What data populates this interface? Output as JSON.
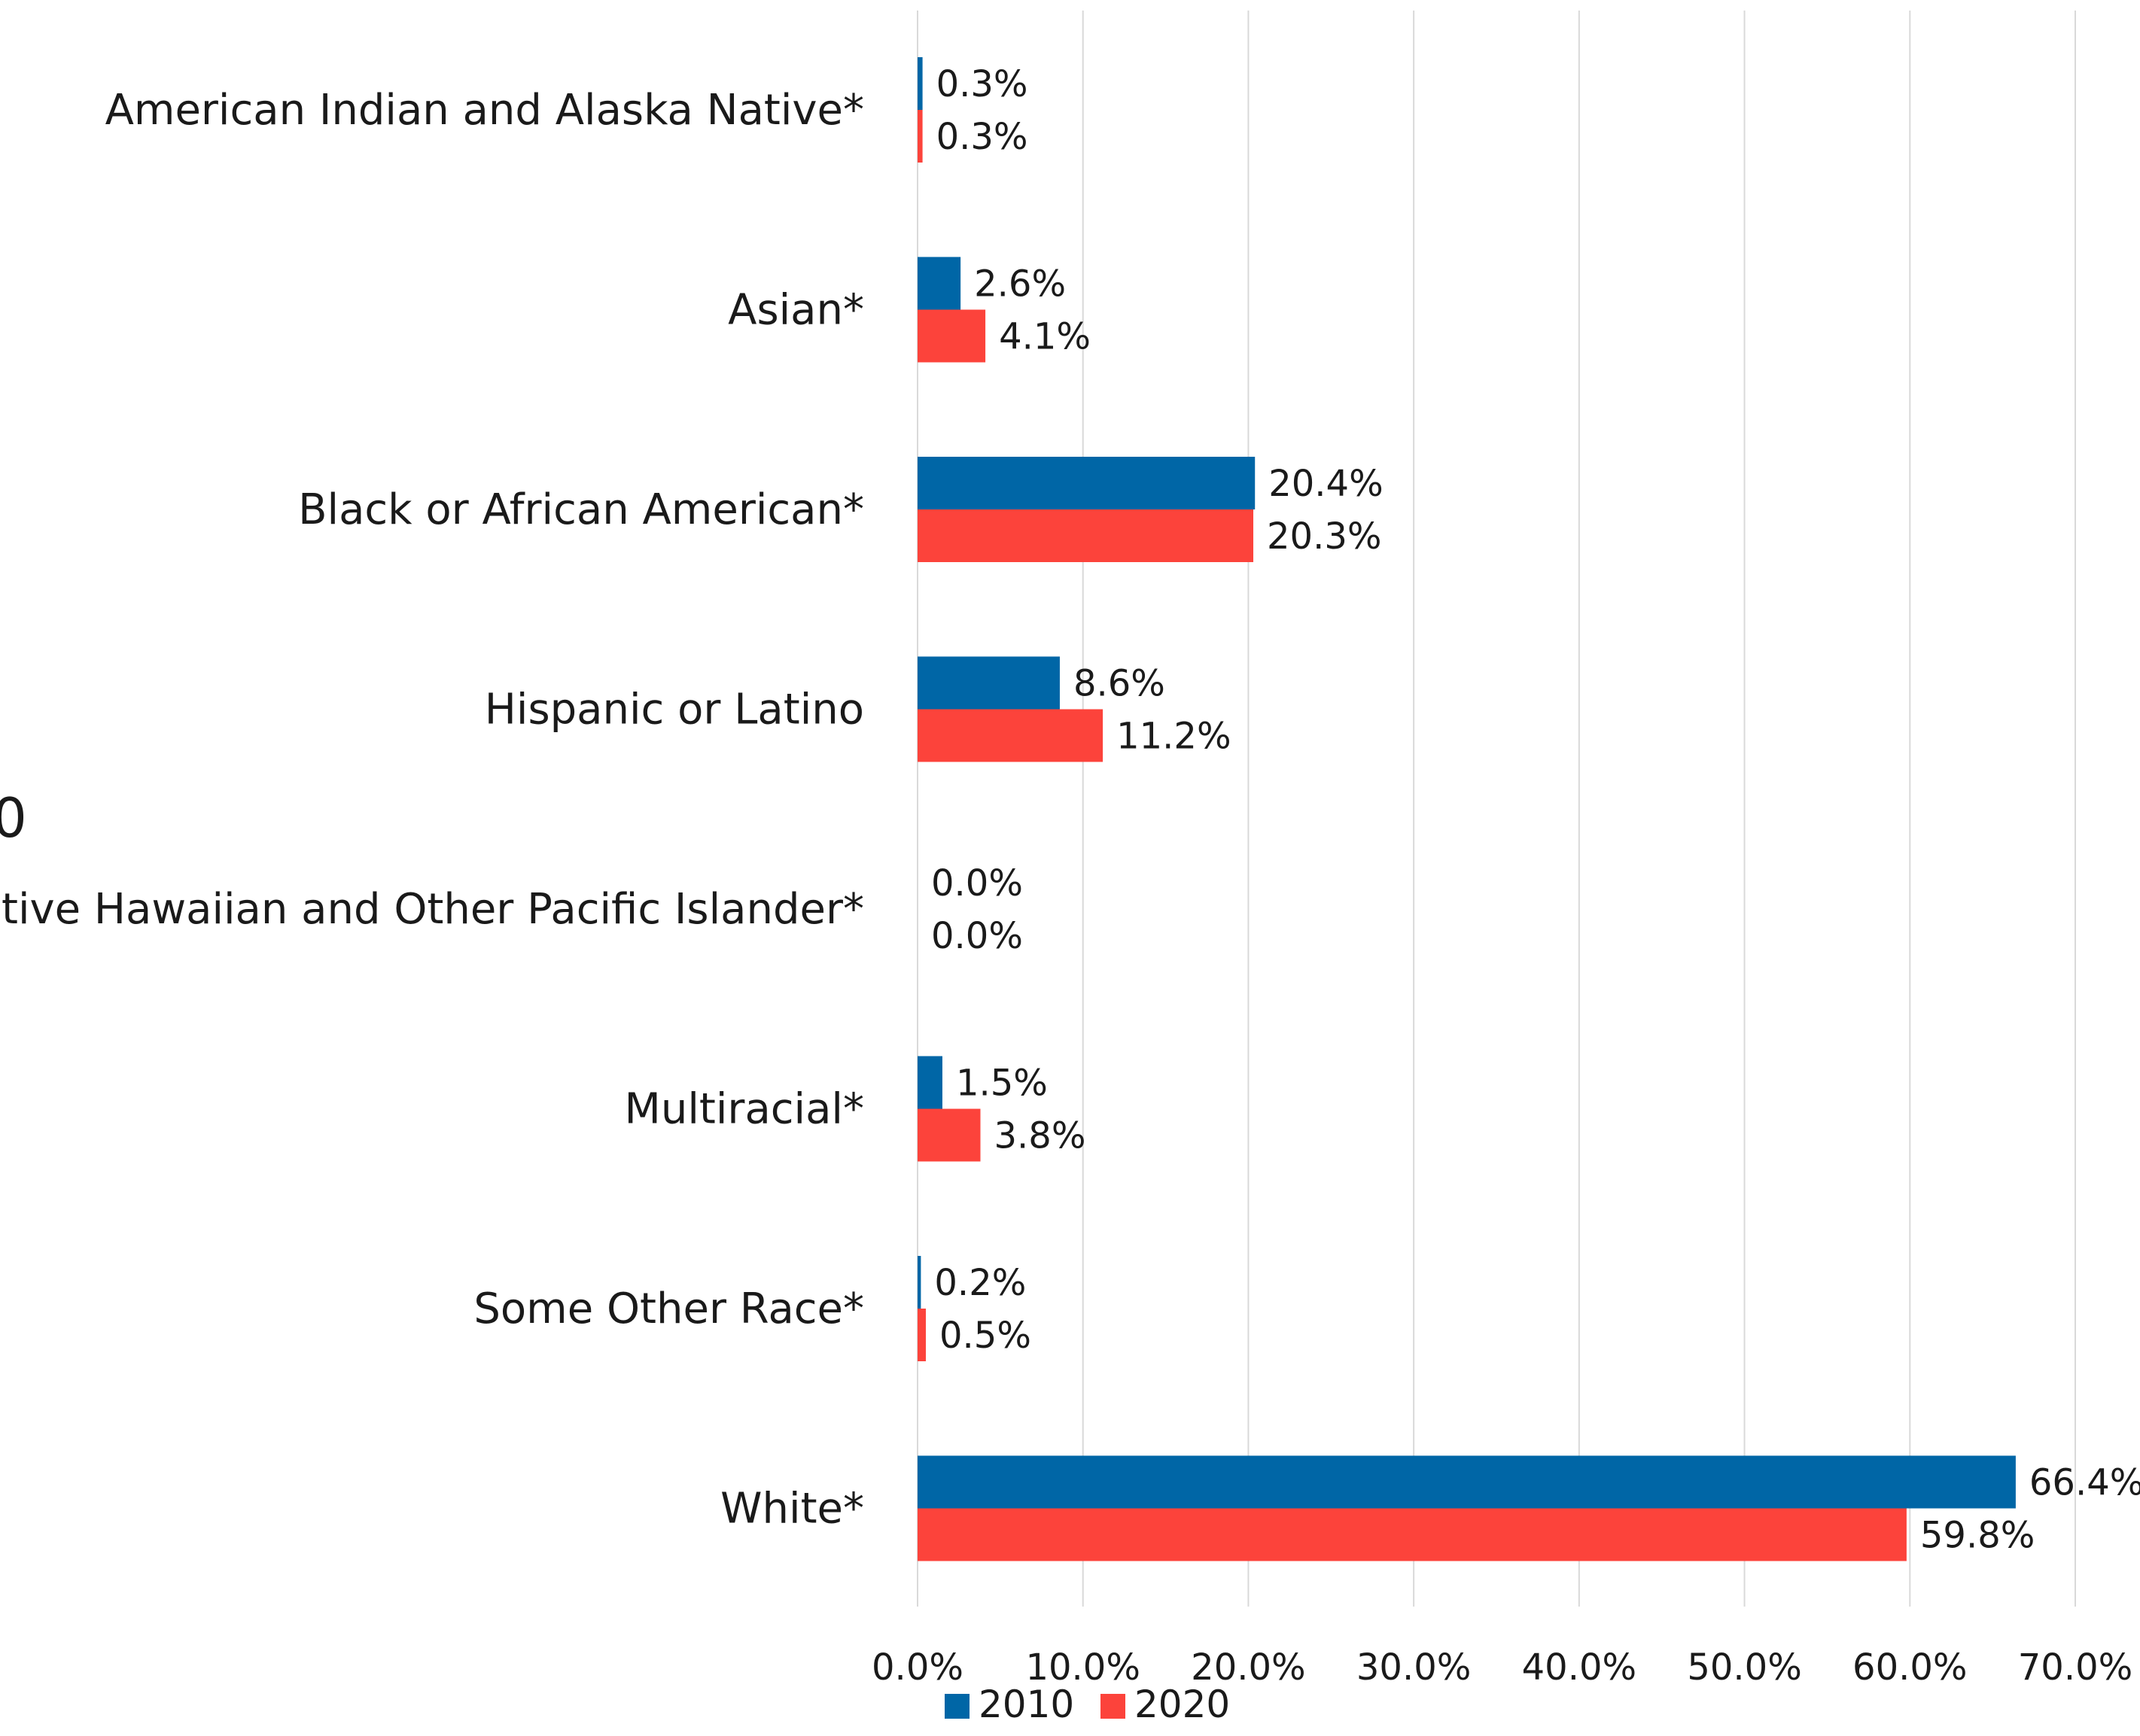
{
  "chart_data": {
    "type": "bar",
    "orientation": "horizontal",
    "categories": [
      "American Indian and Alaska Native*",
      "Asian*",
      "Black or African American*",
      "Hispanic or Latino",
      "Native Hawaiian and Other Pacific Islander*",
      "Multiracial*",
      "Some Other Race*",
      "White*"
    ],
    "series": [
      {
        "name": "2010",
        "color": "#0066a6",
        "values": [
          0.3,
          2.6,
          20.4,
          8.6,
          0.0,
          1.5,
          0.2,
          66.4
        ],
        "labels": [
          "0.3%",
          "2.6%",
          "20.4%",
          "8.6%",
          "0.0%",
          "1.5%",
          "0.2%",
          "66.4%"
        ]
      },
      {
        "name": "2020",
        "color": "#fc433b",
        "values": [
          0.3,
          4.1,
          20.3,
          11.2,
          0.0,
          3.8,
          0.5,
          59.8
        ],
        "labels": [
          "0.3%",
          "4.1%",
          "20.3%",
          "11.2%",
          "0.0%",
          "3.8%",
          "0.5%",
          "59.8%"
        ]
      }
    ],
    "xlim": [
      0,
      70
    ],
    "ticks": [
      0,
      10,
      20,
      30,
      40,
      50,
      60,
      70
    ],
    "tick_labels": [
      "0.0%",
      "10.0%",
      "20.0%",
      "30.0%",
      "40.0%",
      "50.0%",
      "60.0%",
      "70.0%"
    ],
    "grid": true,
    "legend_position": "bottom",
    "clipped_edge_text": "0"
  }
}
